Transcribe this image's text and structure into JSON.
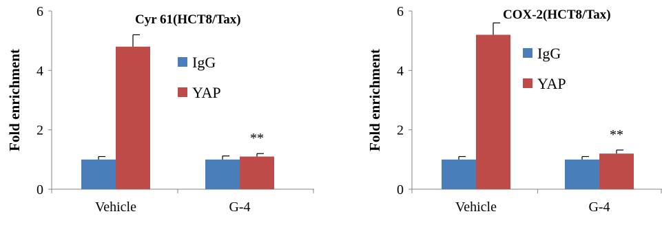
{
  "chart_data": [
    {
      "type": "bar",
      "title": "Cyr 61(HCT8/Tax)",
      "ylabel": "Fold enrichment",
      "xlabel": "",
      "categories": [
        "Vehicle",
        "G-4"
      ],
      "ylim": [
        0,
        6
      ],
      "yticks": [
        "0",
        "2",
        "4",
        "6"
      ],
      "legend": "right",
      "series": [
        {
          "name": "IgG",
          "values": [
            1.0,
            1.0
          ],
          "errors": [
            0.1,
            0.12
          ],
          "color": "#4a7ebb"
        },
        {
          "name": "YAP",
          "values": [
            4.8,
            1.1
          ],
          "errors": [
            0.4,
            0.1
          ],
          "color": "#be4b48"
        }
      ],
      "annotations": [
        {
          "category": "G-4",
          "series": "YAP",
          "text": "**"
        }
      ]
    },
    {
      "type": "bar",
      "title": "COX-2(HCT8/Tax)",
      "ylabel": "Fold enrichment",
      "xlabel": "",
      "categories": [
        "Vehicle",
        "G-4"
      ],
      "ylim": [
        0,
        6
      ],
      "yticks": [
        "0",
        "2",
        "4",
        "6"
      ],
      "legend": "right",
      "series": [
        {
          "name": "IgG",
          "values": [
            1.0,
            1.0
          ],
          "errors": [
            0.1,
            0.1
          ],
          "color": "#4a7ebb"
        },
        {
          "name": "YAP",
          "values": [
            5.2,
            1.2
          ],
          "errors": [
            0.4,
            0.12
          ],
          "color": "#be4b48"
        }
      ],
      "annotations": [
        {
          "category": "G-4",
          "series": "YAP",
          "text": "**"
        }
      ]
    }
  ]
}
